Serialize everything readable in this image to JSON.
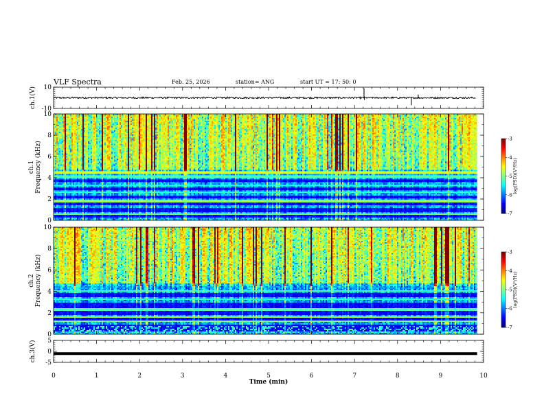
{
  "header": {
    "title": "VLF Spectra",
    "date": "Feb. 25, 2026",
    "station": "station= ANG",
    "start": "start  UT =   17: 50: 0"
  },
  "chart_data": {
    "type": "heatmap",
    "title": "VLF Spectra",
    "xlabel": "Time  (min)",
    "xlim": [
      0,
      10
    ],
    "x_ticks": [
      "0",
      "1",
      "2",
      "3",
      "4",
      "5",
      "6",
      "7",
      "8",
      "9",
      "10"
    ],
    "panels": [
      {
        "name": "ch1-voltage",
        "type": "line",
        "ylabel": "ch.1(V)",
        "ylim": [
          -10,
          10
        ],
        "y_ticks": [
          "10",
          "-10"
        ],
        "baseline_value": 0,
        "spikes_min": [
          {
            "t": 7.22,
            "v": 9
          },
          {
            "t": 7.23,
            "v": -2
          },
          {
            "t": 8.32,
            "v": -7
          },
          {
            "t": 8.48,
            "v": 3
          }
        ],
        "series_end_min": 9.82
      },
      {
        "name": "ch1-spectrogram",
        "type": "heatmap",
        "ylabel": "Frequency  (kHz)",
        "ylabel_prefix": "ch.1",
        "ylim": [
          0,
          10
        ],
        "y_ticks": [
          "0",
          "2",
          "4",
          "6",
          "8",
          "10"
        ],
        "colorbar": {
          "label": "log(PSD)(V²/Hz)",
          "range": [
            -7,
            -3
          ],
          "ticks": [
            "-3",
            "-4",
            "-5",
            "-6",
            "-7"
          ]
        }
      },
      {
        "name": "ch2-spectrogram",
        "type": "heatmap",
        "ylabel": "Frequency  (kHz)",
        "ylabel_prefix": "ch.2",
        "ylim": [
          0,
          10
        ],
        "y_ticks": [
          "0",
          "2",
          "4",
          "6",
          "8",
          "10"
        ],
        "colorbar": {
          "label": "log(PSD)(V²/Hz)",
          "range": [
            -7,
            -3
          ],
          "ticks": [
            "-3",
            "-4",
            "-5",
            "-6",
            "-7"
          ]
        }
      },
      {
        "name": "ch3-voltage",
        "type": "line",
        "ylabel": "ch.3(V)",
        "ylim": [
          -5,
          5
        ],
        "y_ticks": [
          "5",
          "0",
          "-5"
        ],
        "baseline_value": -1
      }
    ]
  }
}
